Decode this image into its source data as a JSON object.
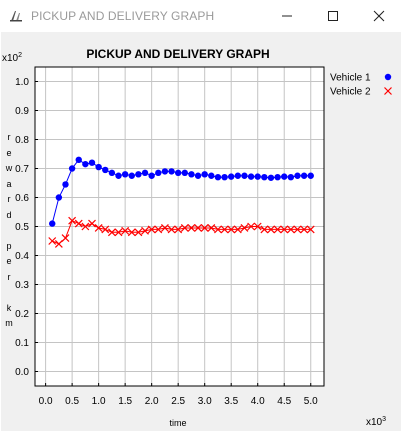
{
  "window": {
    "title": "PICKUP AND DELIVERY GRAPH",
    "minimize_icon": "minimize-icon",
    "maximize_icon": "maximize-icon",
    "close_icon": "close-icon"
  },
  "chart_data": {
    "type": "line",
    "title": "PICKUP AND DELIVERY GRAPH",
    "xlabel": "time",
    "ylabel": "reward per km",
    "ylabel_chars": [
      "r",
      "e",
      "w",
      "a",
      "r",
      "d",
      "",
      "p",
      "e",
      "r",
      "",
      "k",
      "m"
    ],
    "x_multiplier": "x10",
    "x_exponent": "3",
    "y_multiplier": "x10",
    "y_exponent": "2",
    "xlim": [
      -0.2,
      5.25
    ],
    "ylim": [
      -0.05,
      1.05
    ],
    "x_ticks": [
      0.0,
      0.5,
      1.0,
      1.5,
      2.0,
      2.5,
      3.0,
      3.5,
      4.0,
      4.5,
      5.0
    ],
    "x_tick_labels": [
      "0.0",
      "0.5",
      "1.0",
      "1.5",
      "2.0",
      "2.5",
      "3.0",
      "3.5",
      "4.0",
      "4.5",
      "5.0"
    ],
    "y_ticks": [
      0.0,
      0.1,
      0.2,
      0.3,
      0.4,
      0.5,
      0.6,
      0.7,
      0.8,
      0.9,
      1.0
    ],
    "y_tick_labels": [
      "0.0",
      "0.1",
      "0.2",
      "0.3",
      "0.4",
      "0.5",
      "0.6",
      "0.7",
      "0.8",
      "0.9",
      "1.0"
    ],
    "grid": true,
    "legend": "top-right",
    "x": [
      0.125,
      0.25,
      0.375,
      0.5,
      0.625,
      0.75,
      0.875,
      1.0,
      1.125,
      1.25,
      1.375,
      1.5,
      1.625,
      1.75,
      1.875,
      2.0,
      2.125,
      2.25,
      2.375,
      2.5,
      2.625,
      2.75,
      2.875,
      3.0,
      3.125,
      3.25,
      3.375,
      3.5,
      3.625,
      3.75,
      3.875,
      4.0,
      4.125,
      4.25,
      4.375,
      4.5,
      4.625,
      4.75,
      4.875,
      5.0
    ],
    "series": [
      {
        "name": "Vehicle 1",
        "color": "#0000ff",
        "marker": "circle",
        "values": [
          0.51,
          0.6,
          0.645,
          0.7,
          0.73,
          0.715,
          0.72,
          0.705,
          0.695,
          0.685,
          0.675,
          0.68,
          0.675,
          0.68,
          0.685,
          0.675,
          0.685,
          0.69,
          0.69,
          0.685,
          0.685,
          0.68,
          0.675,
          0.68,
          0.675,
          0.67,
          0.67,
          0.672,
          0.675,
          0.675,
          0.672,
          0.672,
          0.67,
          0.668,
          0.67,
          0.672,
          0.67,
          0.675,
          0.675,
          0.675
        ]
      },
      {
        "name": "Vehicle 2",
        "color": "#ff0000",
        "marker": "x",
        "values": [
          0.45,
          0.44,
          0.46,
          0.52,
          0.51,
          0.5,
          0.51,
          0.495,
          0.49,
          0.48,
          0.48,
          0.485,
          0.48,
          0.48,
          0.485,
          0.49,
          0.49,
          0.495,
          0.49,
          0.49,
          0.495,
          0.495,
          0.495,
          0.495,
          0.495,
          0.49,
          0.49,
          0.49,
          0.49,
          0.495,
          0.5,
          0.5,
          0.49,
          0.49,
          0.49,
          0.49,
          0.49,
          0.49,
          0.49,
          0.49
        ]
      }
    ]
  }
}
